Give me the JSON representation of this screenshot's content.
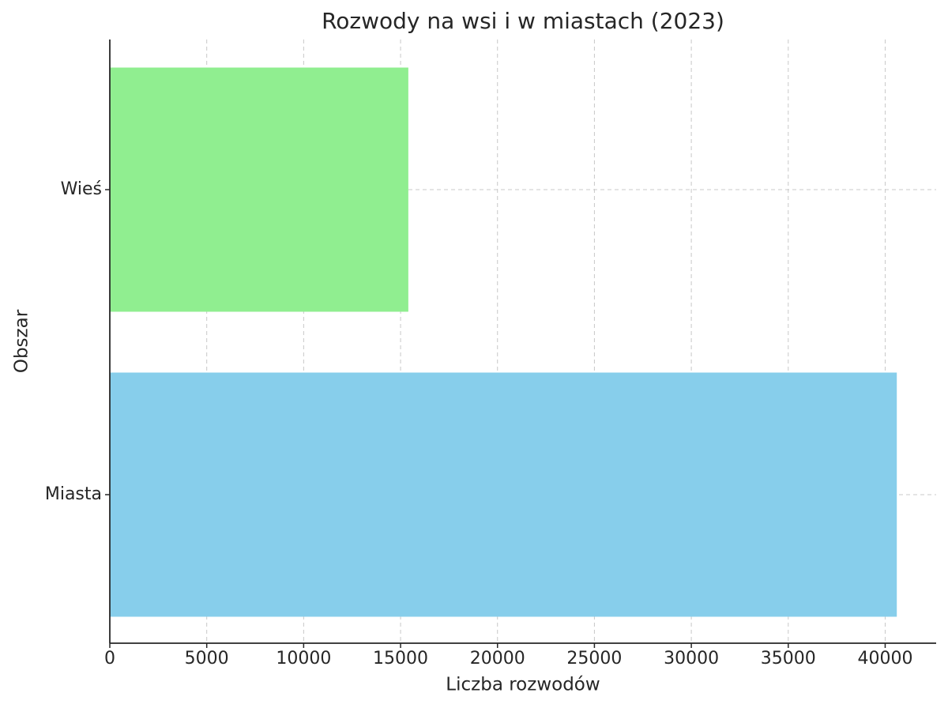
{
  "chart_data": {
    "type": "barh",
    "title": "Rozwody na wsi i w miastach (2023)",
    "x_label": "Liczba rozwodów",
    "y_label": "Obszar",
    "categories": [
      "Miasta",
      "Wieś"
    ],
    "values": [
      40600,
      15400
    ],
    "colors": [
      "#87ceeb",
      "#90ee90"
    ],
    "xlim": [
      0,
      42630
    ],
    "xticks": [
      0,
      5000,
      10000,
      15000,
      20000,
      25000,
      30000,
      35000,
      40000
    ],
    "grid": true
  }
}
